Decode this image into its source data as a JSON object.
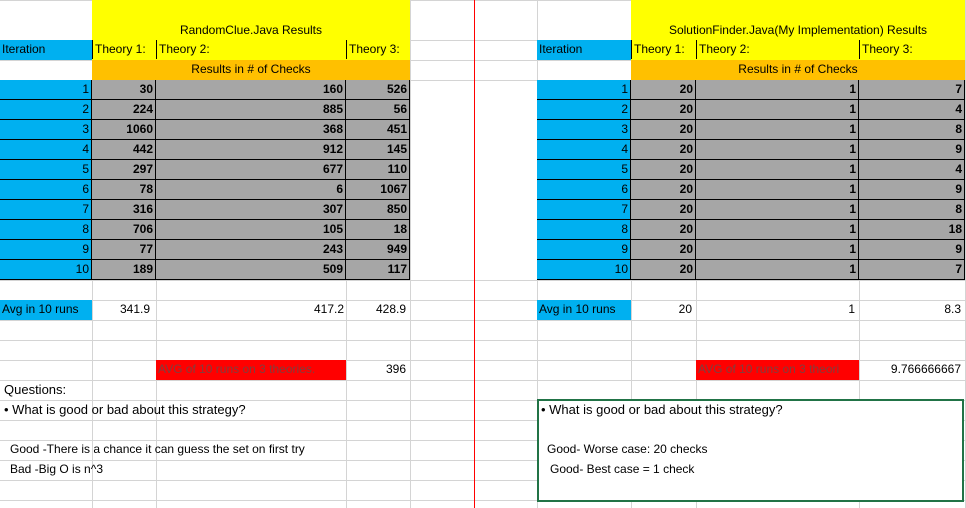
{
  "left": {
    "title": "RandomClue.Java Results",
    "iteration_label": "Iteration",
    "theory1": "Theory 1:",
    "theory2": "Theory 2:",
    "theory3": "Theory 3:",
    "results_label": "Results in # of Checks",
    "rows": [
      {
        "i": "1",
        "t1": "30",
        "t2": "160",
        "t3": "526"
      },
      {
        "i": "2",
        "t1": "224",
        "t2": "885",
        "t3": "56"
      },
      {
        "i": "3",
        "t1": "1060",
        "t2": "368",
        "t3": "451"
      },
      {
        "i": "4",
        "t1": "442",
        "t2": "912",
        "t3": "145"
      },
      {
        "i": "5",
        "t1": "297",
        "t2": "677",
        "t3": "110"
      },
      {
        "i": "6",
        "t1": "78",
        "t2": "6",
        "t3": "1067"
      },
      {
        "i": "7",
        "t1": "316",
        "t2": "307",
        "t3": "850"
      },
      {
        "i": "8",
        "t1": "706",
        "t2": "105",
        "t3": "18"
      },
      {
        "i": "9",
        "t1": "77",
        "t2": "243",
        "t3": "949"
      },
      {
        "i": "10",
        "t1": "189",
        "t2": "509",
        "t3": "117"
      }
    ],
    "avg_label": "Avg in 10 runs",
    "avg_t1": "341.9",
    "avg_t2": "417.2",
    "avg_t3": "428.9",
    "avg_all_label": "AVG of 10 runs on 3 theories.",
    "avg_all_value": "396",
    "questions_label": "Questions:",
    "question": "• What is good or bad about this strategy?",
    "answer1": "Good -There is a chance it can guess the set on first try",
    "answer2": "Bad  -Big O is n^3"
  },
  "right": {
    "title": "SolutionFinder.Java(My Implementation) Results",
    "iteration_label": "Iteration",
    "theory1": "Theory 1:",
    "theory2": "Theory 2:",
    "theory3": "Theory 3:",
    "results_label": "Results in # of Checks",
    "rows": [
      {
        "i": "1",
        "t1": "20",
        "t2": "1",
        "t3": "7"
      },
      {
        "i": "2",
        "t1": "20",
        "t2": "1",
        "t3": "4"
      },
      {
        "i": "3",
        "t1": "20",
        "t2": "1",
        "t3": "8"
      },
      {
        "i": "4",
        "t1": "20",
        "t2": "1",
        "t3": "9"
      },
      {
        "i": "5",
        "t1": "20",
        "t2": "1",
        "t3": "4"
      },
      {
        "i": "6",
        "t1": "20",
        "t2": "1",
        "t3": "9"
      },
      {
        "i": "7",
        "t1": "20",
        "t2": "1",
        "t3": "8"
      },
      {
        "i": "8",
        "t1": "20",
        "t2": "1",
        "t3": "18"
      },
      {
        "i": "9",
        "t1": "20",
        "t2": "1",
        "t3": "9"
      },
      {
        "i": "10",
        "t1": "20",
        "t2": "1",
        "t3": "7"
      }
    ],
    "avg_label": "Avg in 10 runs",
    "avg_t1": "20",
    "avg_t2": "1",
    "avg_t3": "8.3",
    "avg_all_label": "AVG of 10 runs on 3 theori",
    "avg_all_value": "9.766666667",
    "question": "• What is good or bad about this strategy?",
    "answer1": "Good- Worse case: 20 checks",
    "answer2": "Good- Best case = 1 check"
  },
  "colors": {
    "header_yellow": "#ffff00",
    "header_orange": "#ffc000",
    "iteration_blue": "#00b0f0",
    "results_grey": "#a6a6a6",
    "avg_red": "#ff0000",
    "selection_green": "#217346"
  }
}
